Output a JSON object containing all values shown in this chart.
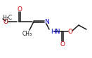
{
  "bg_color": "#ffffff",
  "bond_color": "#1a1a1a",
  "atom_colors": {
    "O": "#cc0000",
    "N": "#0000bb",
    "C": "#1a1a1a",
    "H": "#1a1a1a"
  },
  "figsize": [
    1.31,
    0.83
  ],
  "dpi": 100,
  "xlim": [
    0,
    131
  ],
  "ylim": [
    0,
    83
  ]
}
